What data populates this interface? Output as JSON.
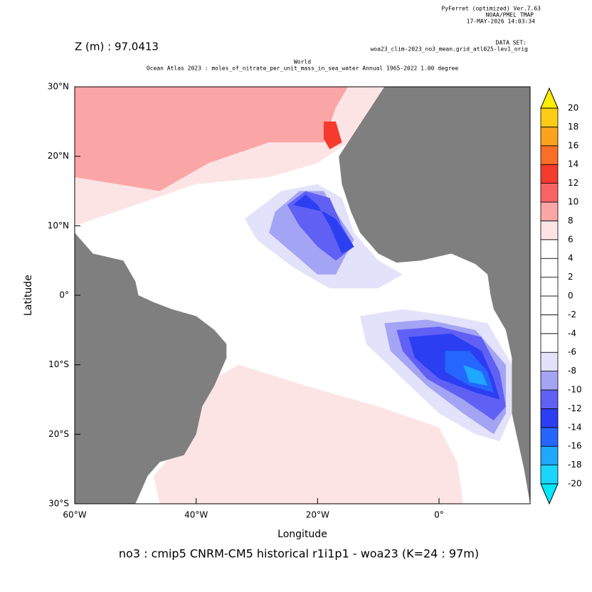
{
  "header": {
    "software": "PyFerret (optimized) Ver.7.63",
    "organization": "NOAA/PMEL TMAP",
    "date": "17-MAY-2026 14:03:34",
    "dataset_label": "DATA SET:",
    "dataset": "woa23_clim-2023_no3_mean.grid_atl025-lev1_orig"
  },
  "chart_data": {
    "type": "map",
    "depth_label": "Z (m) : 97.0413",
    "title": "World",
    "subtitle": "Ocean Atlas 2023 : moles_of_nitrate_per_unit_mass_in_sea_water Annual 1965-2022 1.00 degree",
    "x_label": "Longitude",
    "y_label": "Latitude",
    "xlim": [
      -60,
      15
    ],
    "ylim": [
      -30,
      30
    ],
    "xticks": [
      {
        "value": -60,
        "label": "60°W"
      },
      {
        "value": -40,
        "label": "40°W"
      },
      {
        "value": -20,
        "label": "20°W"
      },
      {
        "value": 0,
        "label": "0°"
      }
    ],
    "yticks": [
      {
        "value": 30,
        "label": "30°N"
      },
      {
        "value": 20,
        "label": "20°N"
      },
      {
        "value": 10,
        "label": "10°N"
      },
      {
        "value": 0,
        "label": "0°"
      },
      {
        "value": -10,
        "label": "10°S"
      },
      {
        "value": -20,
        "label": "20°S"
      },
      {
        "value": -30,
        "label": "30°S"
      }
    ],
    "colorbar": {
      "levels": [
        -20,
        -18,
        -16,
        -14,
        -12,
        -10,
        -8,
        -6,
        -4,
        -2,
        0,
        2,
        4,
        6,
        8,
        10,
        12,
        14,
        16,
        18,
        20
      ],
      "colors": [
        "#1ad6ff",
        "#1ea8ff",
        "#2566ff",
        "#2b3ef2",
        "#6060f5",
        "#a4a4f5",
        "#e2e2fa",
        "#ffffff",
        "#ffffff",
        "#ffffff",
        "#ffffff",
        "#ffffff",
        "#ffffff",
        "#fde4e4",
        "#fba6a6",
        "#f86464",
        "#f53a2e",
        "#fb6e26",
        "#fca21e",
        "#fdcc17"
      ],
      "under_color": "#00e8ff",
      "over_color": "#ffee00"
    },
    "land_color": "#7f7f7f",
    "values": [
      7,
      9,
      7,
      -7,
      -9,
      -11,
      -13,
      -7,
      -9,
      -11,
      -13,
      -15,
      -17,
      13
    ],
    "caption": "no3 : cmip5 CNRM-CM5 historical r1i1p1 - woa23  (K=24 : 97m)"
  }
}
